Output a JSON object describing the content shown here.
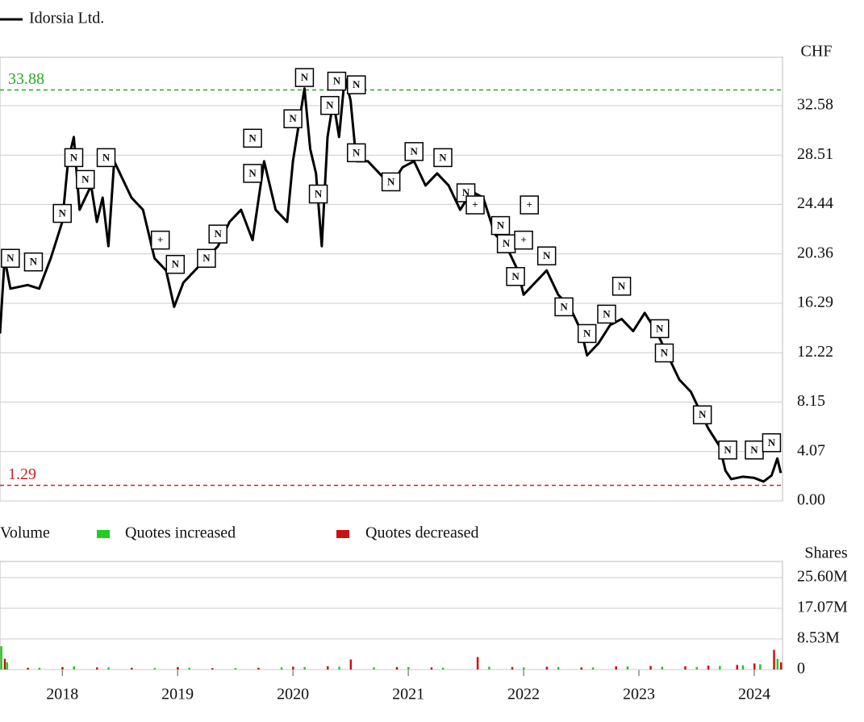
{
  "chart_data": [
    {
      "type": "line",
      "series": [
        {
          "name": "Idorsia Ltd.",
          "color": "#000000",
          "x": [
            2017.46,
            2017.5,
            2017.55,
            2017.7,
            2017.8,
            2017.9,
            2018.0,
            2018.05,
            2018.1,
            2018.15,
            2018.25,
            2018.3,
            2018.35,
            2018.4,
            2018.45,
            2018.5,
            2018.6,
            2018.7,
            2018.75,
            2018.8,
            2018.9,
            2018.97,
            2019.05,
            2019.15,
            2019.25,
            2019.35,
            2019.45,
            2019.55,
            2019.65,
            2019.75,
            2019.8,
            2019.85,
            2019.95,
            2020.0,
            2020.05,
            2020.1,
            2020.15,
            2020.2,
            2020.25,
            2020.3,
            2020.35,
            2020.4,
            2020.45,
            2020.5,
            2020.55,
            2020.65,
            2020.75,
            2020.85,
            2020.95,
            2021.05,
            2021.15,
            2021.25,
            2021.35,
            2021.45,
            2021.55,
            2021.65,
            2021.75,
            2021.85,
            2021.95,
            2022.0,
            2022.1,
            2022.2,
            2022.3,
            2022.4,
            2022.5,
            2022.55,
            2022.65,
            2022.75,
            2022.85,
            2022.95,
            2023.05,
            2023.15,
            2023.25,
            2023.35,
            2023.45,
            2023.5,
            2023.6,
            2023.7,
            2023.75,
            2023.8,
            2023.9,
            2024.0,
            2024.08,
            2024.15,
            2024.2,
            2024.23
          ],
          "values": [
            13.8,
            20,
            17.5,
            17.8,
            17.5,
            20,
            23,
            28,
            30,
            24,
            26,
            23,
            25,
            21,
            28,
            27,
            25,
            24,
            22,
            20,
            19,
            16,
            18,
            19,
            20,
            21,
            23,
            24,
            21.5,
            28,
            26,
            24,
            23,
            28,
            31,
            34,
            29,
            27,
            21,
            30,
            33,
            30,
            35,
            33,
            28,
            28,
            27,
            26,
            27.5,
            28,
            26,
            27,
            26,
            24,
            25.5,
            25,
            22,
            21,
            19,
            17,
            18,
            19,
            17,
            16,
            14,
            12,
            13,
            14.5,
            15,
            14,
            15.5,
            14,
            12,
            10,
            9,
            8,
            6,
            4.5,
            2.5,
            1.8,
            2,
            1.9,
            1.6,
            2.1,
            3.5,
            2.3
          ]
        }
      ],
      "ylabel": "CHF",
      "xlim": [
        2017.46,
        2024.245
      ],
      "xticks": [
        2018,
        2019,
        2020,
        2021,
        2022,
        2023,
        2024
      ],
      "ylim": [
        0,
        36.57
      ],
      "yticks": [
        {
          "value": 0,
          "label": "0.00"
        },
        4.07,
        8.15,
        12.22,
        16.29,
        20.36,
        24.44,
        28.51,
        32.58
      ],
      "grid": true,
      "hlines": [
        {
          "value": 33.88,
          "color": "#22aa22"
        },
        {
          "value": 1.29,
          "color": "#cc2222"
        }
      ],
      "events": [
        {
          "x": 2017.55,
          "y": 20,
          "label": "N"
        },
        {
          "x": 2017.75,
          "y": 19.7,
          "label": "N"
        },
        {
          "x": 2018.0,
          "y": 23.7,
          "label": "N"
        },
        {
          "x": 2018.1,
          "y": 28.3,
          "label": "N"
        },
        {
          "x": 2018.2,
          "y": 26.5,
          "label": "N"
        },
        {
          "x": 2018.38,
          "y": 28.3,
          "label": "N"
        },
        {
          "x": 2018.85,
          "y": 21.5,
          "label": "+"
        },
        {
          "x": 2018.98,
          "y": 19.5,
          "label": "N"
        },
        {
          "x": 2019.25,
          "y": 20,
          "label": "N"
        },
        {
          "x": 2019.35,
          "y": 22,
          "label": "N"
        },
        {
          "x": 2019.65,
          "y": 29.9,
          "label": "N"
        },
        {
          "x": 2019.65,
          "y": 27,
          "label": "N"
        },
        {
          "x": 2020.0,
          "y": 31.5,
          "label": "N"
        },
        {
          "x": 2020.1,
          "y": 34.9,
          "label": "N"
        },
        {
          "x": 2020.22,
          "y": 25.3,
          "label": "N"
        },
        {
          "x": 2020.32,
          "y": 32.6,
          "label": "N"
        },
        {
          "x": 2020.38,
          "y": 34.6,
          "label": "N"
        },
        {
          "x": 2020.55,
          "y": 34.3,
          "label": "N"
        },
        {
          "x": 2020.55,
          "y": 28.7,
          "label": "N"
        },
        {
          "x": 2020.85,
          "y": 26.3,
          "label": "N"
        },
        {
          "x": 2021.05,
          "y": 28.8,
          "label": "N"
        },
        {
          "x": 2021.3,
          "y": 28.3,
          "label": "N"
        },
        {
          "x": 2021.5,
          "y": 25.4,
          "label": "N"
        },
        {
          "x": 2021.58,
          "y": 24.4,
          "label": "+"
        },
        {
          "x": 2021.8,
          "y": 22.7,
          "label": "N"
        },
        {
          "x": 2021.85,
          "y": 21.2,
          "label": "N"
        },
        {
          "x": 2022.05,
          "y": 24.4,
          "label": "+"
        },
        {
          "x": 2022.0,
          "y": 21.5,
          "label": "+"
        },
        {
          "x": 2021.93,
          "y": 18.5,
          "label": "N"
        },
        {
          "x": 2022.2,
          "y": 20.2,
          "label": "N"
        },
        {
          "x": 2022.35,
          "y": 16,
          "label": "N"
        },
        {
          "x": 2022.55,
          "y": 13.8,
          "label": "N"
        },
        {
          "x": 2022.72,
          "y": 15.4,
          "label": "N"
        },
        {
          "x": 2022.85,
          "y": 17.7,
          "label": "N"
        },
        {
          "x": 2023.18,
          "y": 14.2,
          "label": "N"
        },
        {
          "x": 2023.22,
          "y": 12.2,
          "label": "N"
        },
        {
          "x": 2023.55,
          "y": 7.1,
          "label": "N"
        },
        {
          "x": 2023.77,
          "y": 4.2,
          "label": "N"
        },
        {
          "x": 2024.0,
          "y": 4.2,
          "label": "N"
        },
        {
          "x": 2024.15,
          "y": 4.8,
          "label": "N"
        }
      ]
    },
    {
      "type": "bar",
      "title": "Volume",
      "ylabel": "Shares",
      "xlim": [
        2017.46,
        2024.245
      ],
      "ylim": [
        0,
        30100000
      ],
      "yticks": [
        0,
        {
          "value": 8530000,
          "label": "8.53M"
        },
        {
          "value": 17070000,
          "label": "17.07M"
        },
        {
          "value": 25600000,
          "label": "25.60M"
        }
      ],
      "grid": true,
      "series": [
        {
          "name": "Quotes increased",
          "color": "#22cc22",
          "x": [
            2017.47,
            2017.52,
            2017.8,
            2018.1,
            2018.4,
            2018.8,
            2019.1,
            2019.5,
            2019.9,
            2020.1,
            2020.4,
            2020.7,
            2021.0,
            2021.3,
            2021.7,
            2022.0,
            2022.3,
            2022.6,
            2022.9,
            2023.2,
            2023.5,
            2023.7,
            2023.9,
            2024.05,
            2024.2
          ],
          "values": [
            6500000,
            2000000,
            500000,
            900000,
            600000,
            400000,
            500000,
            400000,
            600000,
            700000,
            800000,
            600000,
            700000,
            500000,
            800000,
            600000,
            700000,
            600000,
            900000,
            800000,
            700000,
            1000000,
            1200000,
            1500000,
            3000000
          ]
        },
        {
          "name": "Quotes decreased",
          "color": "#cc1111",
          "x": [
            2017.5,
            2017.7,
            2018.0,
            2018.3,
            2018.6,
            2019.0,
            2019.3,
            2019.7,
            2020.0,
            2020.3,
            2020.5,
            2020.9,
            2021.2,
            2021.6,
            2021.9,
            2022.2,
            2022.5,
            2022.8,
            2023.1,
            2023.4,
            2023.6,
            2023.85,
            2024.0,
            2024.17,
            2024.23
          ],
          "values": [
            3000000,
            500000,
            700000,
            600000,
            500000,
            700000,
            400000,
            500000,
            800000,
            900000,
            2800000,
            700000,
            600000,
            3500000,
            700000,
            800000,
            600000,
            900000,
            1000000,
            900000,
            1100000,
            1300000,
            1700000,
            5500000,
            2000000
          ]
        }
      ]
    }
  ]
}
